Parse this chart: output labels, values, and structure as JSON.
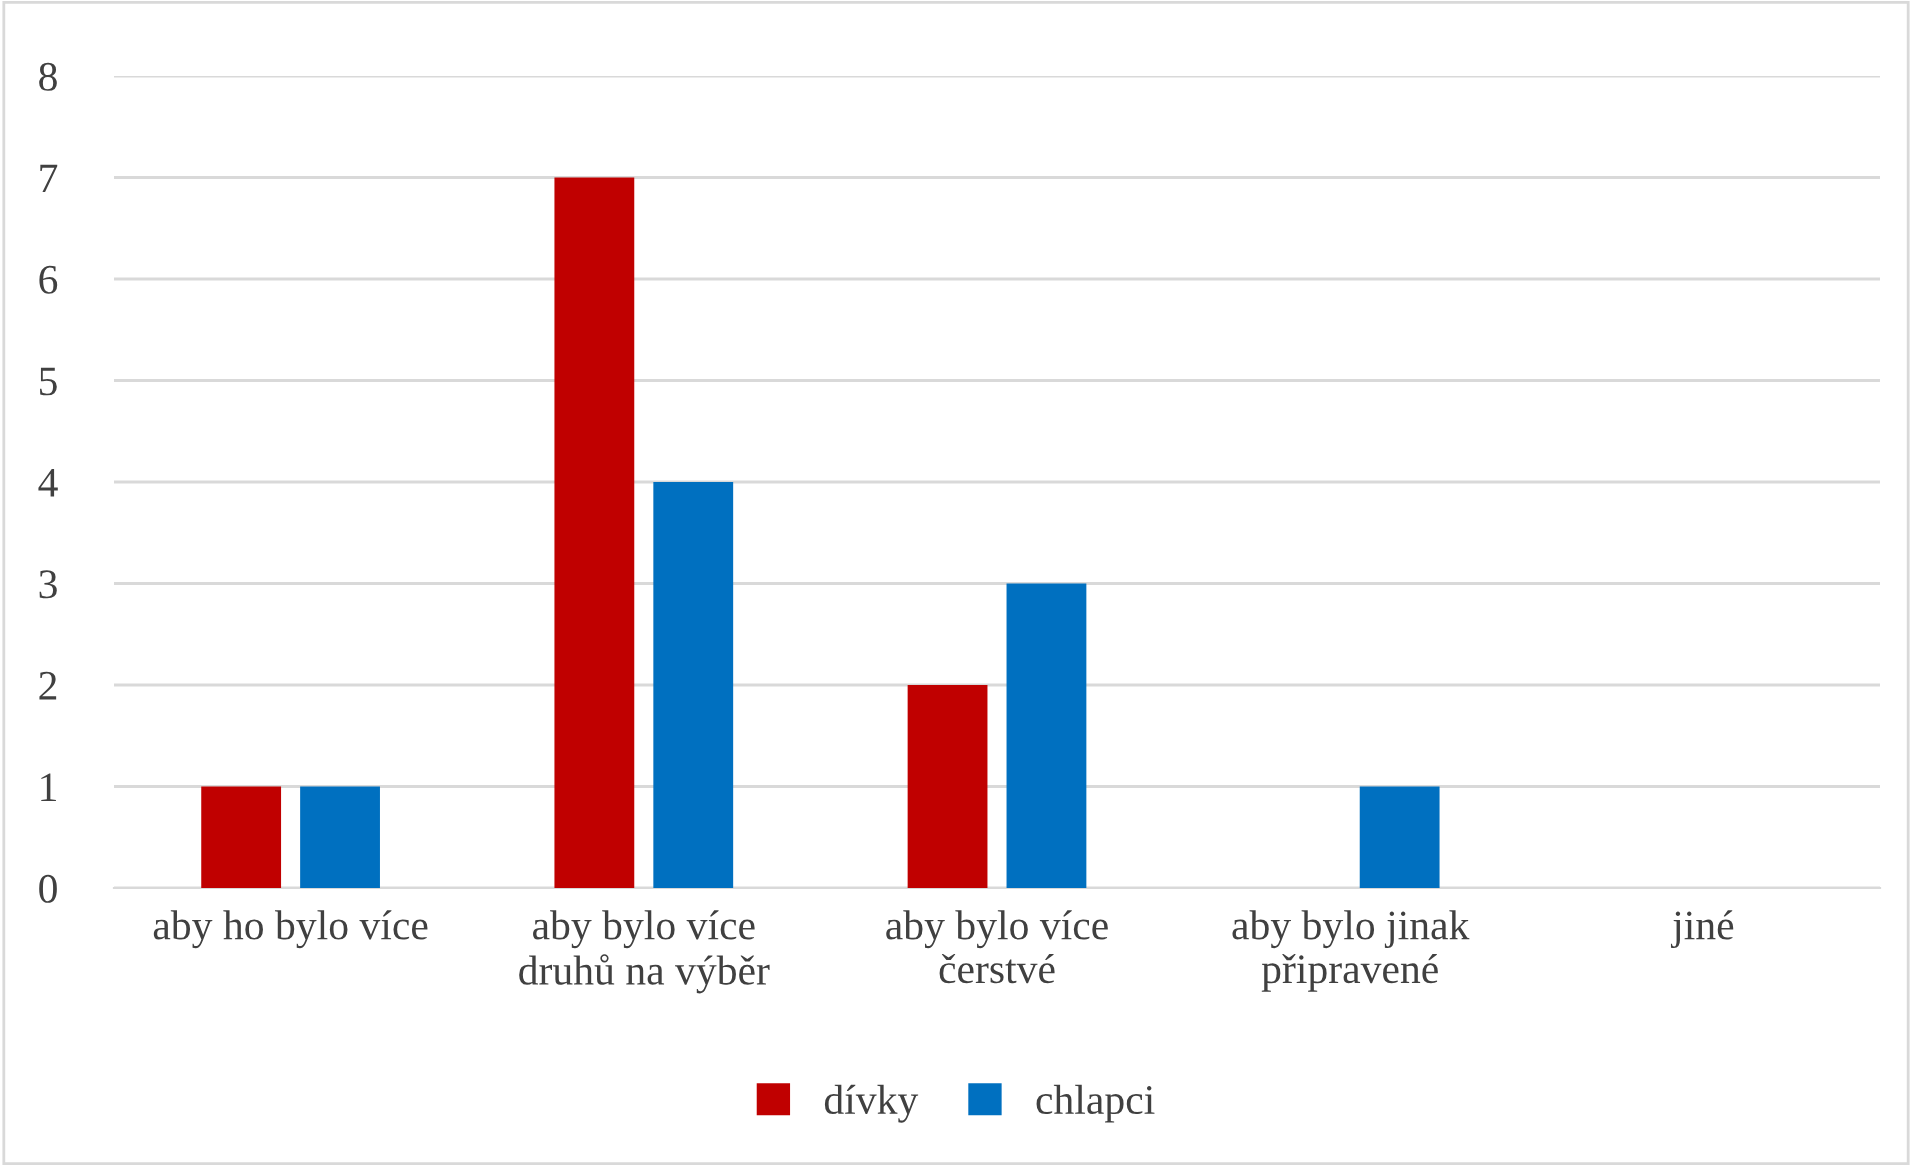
{
  "chart_data": {
    "type": "bar",
    "categories": [
      "aby ho bylo více",
      "aby bylo více\ndruhů na výběr",
      "aby bylo více\nčerstvé",
      "aby bylo jinak\npřipravené",
      "jiné"
    ],
    "series": [
      {
        "name": "dívky",
        "color": "#c00000",
        "values": [
          1,
          7,
          2,
          0,
          0
        ]
      },
      {
        "name": "chlapci",
        "color": "#0070c0",
        "values": [
          1,
          4,
          3,
          1,
          0
        ]
      }
    ],
    "ylim": [
      0,
      8
    ],
    "yticks": [
      0,
      1,
      2,
      3,
      4,
      5,
      6,
      7,
      8
    ],
    "grid": "y",
    "legend": "bottom"
  }
}
